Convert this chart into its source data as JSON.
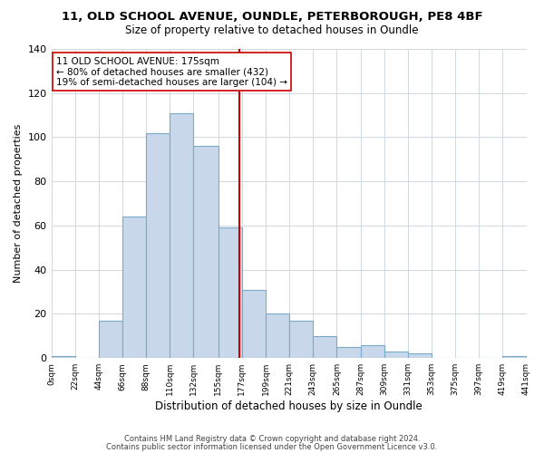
{
  "title1": "11, OLD SCHOOL AVENUE, OUNDLE, PETERBOROUGH, PE8 4BF",
  "title2": "Size of property relative to detached houses in Oundle",
  "xlabel": "Distribution of detached houses by size in Oundle",
  "ylabel": "Number of detached properties",
  "bin_edges": [
    0,
    22,
    44,
    66,
    88,
    110,
    132,
    155,
    177,
    199,
    221,
    243,
    265,
    287,
    309,
    331,
    353,
    375,
    397,
    419,
    441
  ],
  "bin_counts": [
    1,
    0,
    17,
    64,
    102,
    111,
    96,
    59,
    31,
    20,
    17,
    10,
    5,
    6,
    3,
    2,
    0,
    0,
    0,
    1
  ],
  "property_size": 175,
  "bar_color": "#c8d8ea",
  "bar_edgecolor": "#7aaac8",
  "line_color": "#cc0000",
  "line_width": 1.5,
  "ylim": [
    0,
    140
  ],
  "yticks": [
    0,
    20,
    40,
    60,
    80,
    100,
    120,
    140
  ],
  "annotation_line1": "11 OLD SCHOOL AVENUE: 175sqm",
  "annotation_line2": "← 80% of detached houses are smaller (432)",
  "annotation_line3": "19% of semi-detached houses are larger (104) →",
  "footnote1": "Contains HM Land Registry data © Crown copyright and database right 2024.",
  "footnote2": "Contains public sector information licensed under the Open Government Licence v3.0.",
  "background_color": "#ffffff",
  "grid_color": "#d0d8e0"
}
